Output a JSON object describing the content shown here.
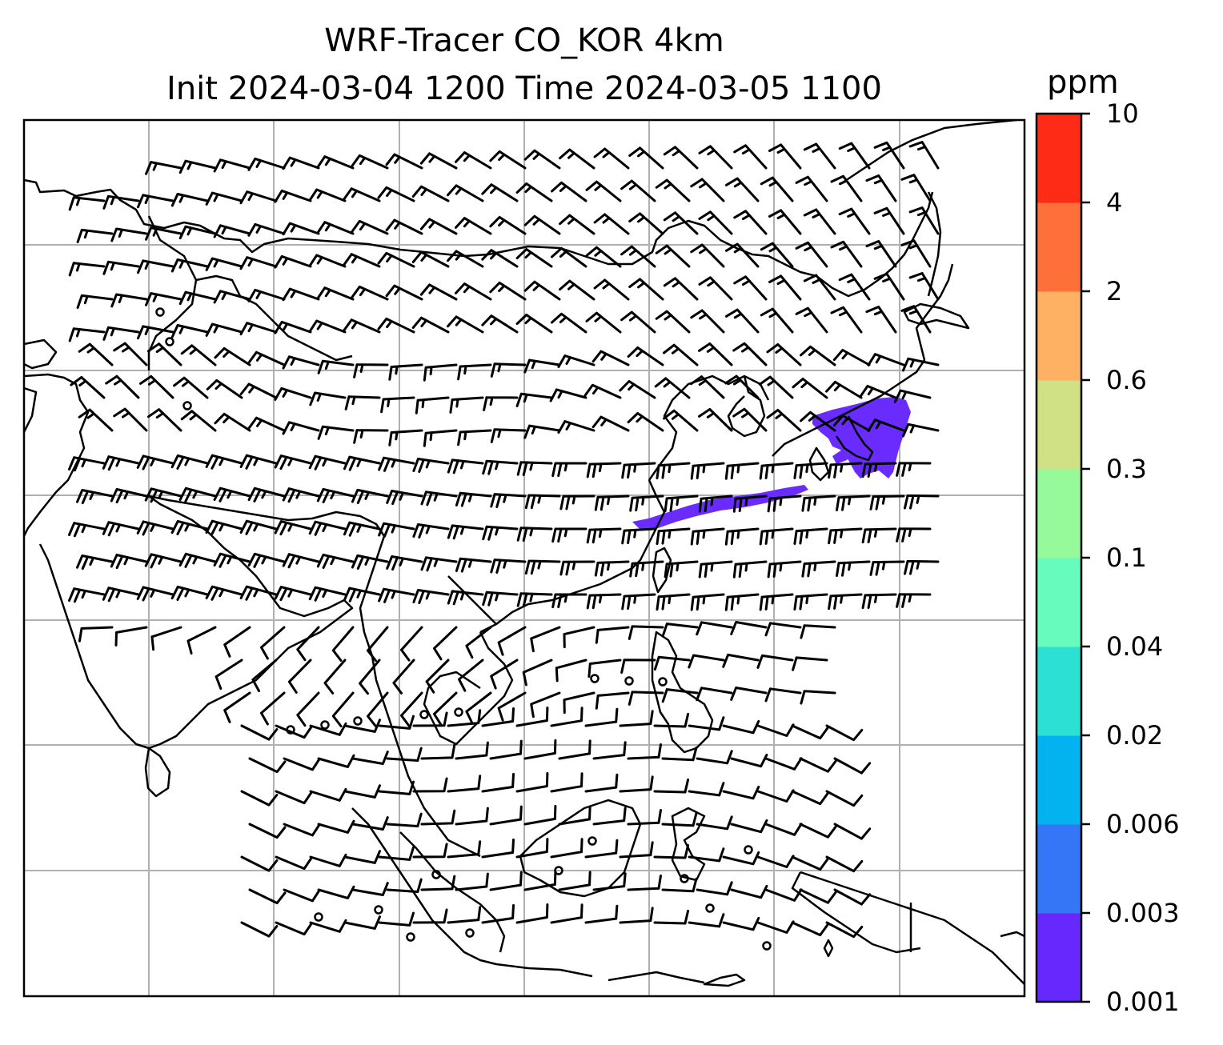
{
  "title_line1": "WRF-Tracer CO_KOR 4km",
  "title_line2": "Init 2024-03-04 1200 Time 2024-03-05 1100",
  "colorbar": {
    "unit": "ppm",
    "ticks": [
      "0.001",
      "0.003",
      "0.006",
      "0.02",
      "0.04",
      "0.1",
      "0.3",
      "0.6",
      "2",
      "4",
      "10"
    ],
    "colors": [
      "#6628fd",
      "#3476f6",
      "#02b3ef",
      "#2de0d4",
      "#67fbbe",
      "#97fa9a",
      "#cfe085",
      "#feb063",
      "#fe6f3a",
      "#fe2b17"
    ]
  },
  "plume_color": "#6a2bff",
  "grid_color": "#b0b0b0"
}
